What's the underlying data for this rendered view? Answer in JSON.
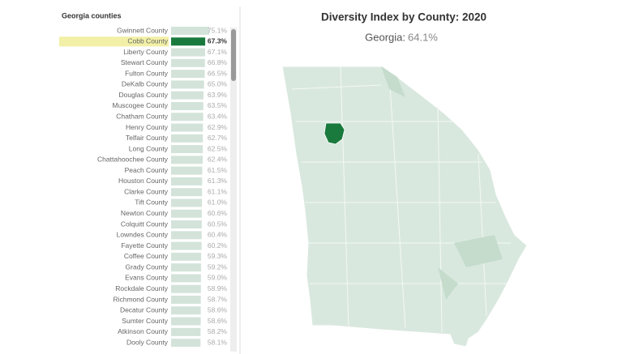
{
  "chart_data": {
    "type": "bar",
    "title": "Georgia counties",
    "categories": [
      "Gwinnett County",
      "Cobb County",
      "Liberty County",
      "Stewart County",
      "Fulton County",
      "DeKalb County",
      "Douglas County",
      "Muscogee County",
      "Chatham County",
      "Henry County",
      "Telfair County",
      "Long County",
      "Chattahoochee County",
      "Peach County",
      "Houston County",
      "Clarke County",
      "Tift County",
      "Newton County",
      "Colquitt County",
      "Lowndes County",
      "Fayette County",
      "Coffee County",
      "Grady County",
      "Evans County",
      "Rockdale County",
      "Richmond County",
      "Decatur County",
      "Sumter County",
      "Atkinson County",
      "Dooly County"
    ],
    "values": [
      75.1,
      67.3,
      67.1,
      66.8,
      66.5,
      65.0,
      63.9,
      63.5,
      63.4,
      62.9,
      62.7,
      62.5,
      62.4,
      61.5,
      61.3,
      61.1,
      61.0,
      60.6,
      60.5,
      60.4,
      60.2,
      59.3,
      59.2,
      59.0,
      58.9,
      58.7,
      58.6,
      58.6,
      58.2,
      58.1
    ],
    "value_labels": [
      "75.1%",
      "67.3%",
      "67.1%",
      "66.8%",
      "66.5%",
      "65.0%",
      "63.9%",
      "63.5%",
      "63.4%",
      "62.9%",
      "62.7%",
      "62.5%",
      "62.4%",
      "61.5%",
      "61.3%",
      "61.1%",
      "61.0%",
      "60.6%",
      "60.5%",
      "60.4%",
      "60.2%",
      "59.3%",
      "59.2%",
      "59.0%",
      "58.9%",
      "58.7%",
      "58.6%",
      "58.6%",
      "58.2%",
      "58.1%"
    ],
    "xlim": [
      0,
      120
    ],
    "color": "#d3e3d9",
    "highlight_index": 1,
    "highlight_color": "#1a7a3e",
    "map_title": "Diversity Index by County: 2020",
    "state_label": "Georgia:",
    "state_value": 64.1,
    "state_value_label": "64.1%"
  }
}
